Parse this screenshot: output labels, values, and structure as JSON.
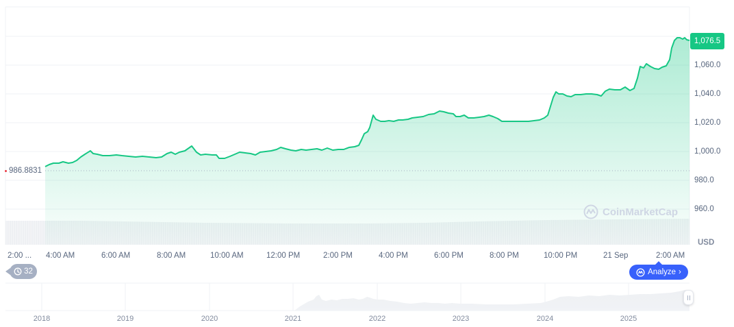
{
  "chart_data": {
    "type": "area",
    "title": "",
    "currency_label": "USD",
    "xlabel": "",
    "ylabel": "",
    "ylim": [
      955,
      1082
    ],
    "grid": true,
    "y_ticks": [
      "1,060.0",
      "1,040.0",
      "1,020.0",
      "1,000.0",
      "980.0",
      "960.0"
    ],
    "y_tick_values": [
      1060,
      1040,
      1020,
      1000,
      980,
      960
    ],
    "x_ticks": [
      "2:00 ...",
      "4:00 AM",
      "6:00 AM",
      "8:00 AM",
      "10:00 AM",
      "12:00 PM",
      "2:00 PM",
      "4:00 PM",
      "6:00 PM",
      "8:00 PM",
      "10:00 PM",
      "21 Sep",
      "2:00 AM"
    ],
    "current_price": "1,076.5",
    "baseline_price": "986.8831",
    "line_color": "#16c784",
    "series": [
      {
        "name": "Price",
        "x": [
          "~3:00 AM",
          "4:00 AM",
          "5:00 AM",
          "6:00 AM",
          "7:00 AM",
          "8:00 AM",
          "9:00 AM",
          "10:00 AM",
          "11:00 AM",
          "12:00 PM",
          "1:00 PM",
          "2:00 PM",
          "3:00 PM",
          "4:00 PM",
          "5:00 PM",
          "6:00 PM",
          "7:00 PM",
          "8:00 PM",
          "9:00 PM",
          "10:00 PM",
          "11:00 PM",
          "21 Sep 12:00 AM",
          "1:00 AM",
          "2:00 AM",
          "~2:45 AM"
        ],
        "values": [
          989.5,
          992.5,
          997.5,
          997.0,
          996.5,
          996.0,
          1002.0,
          997.5,
          999.0,
          1001.5,
          1001.0,
          1001.5,
          1015.0,
          1022.0,
          1024.5,
          1026.5,
          1024.0,
          1021.0,
          1021.5,
          1038.0,
          1040.0,
          1043.0,
          1057.0,
          1058.0,
          1076.5
        ]
      }
    ],
    "volume_note": "light gray volume bars along bottom of main chart, roughly uniform, slightly higher toward the end",
    "navigator": {
      "years": [
        "2018",
        "2019",
        "2020",
        "2021",
        "2022",
        "2023",
        "2024",
        "2025"
      ],
      "shape_note": "flat until early 2021, spike in 2021, plateau 2022-2023, rise 2024-2025"
    }
  },
  "ui": {
    "history_badge": {
      "count": "32",
      "icon": "history-clock-icon"
    },
    "analyze_button": {
      "label": "Analyze",
      "icon": "cmc-ai-icon",
      "chevron": "›"
    },
    "watermark": {
      "text": "CoinMarketCap",
      "icon": "coinmarketcap-logo-icon"
    }
  }
}
